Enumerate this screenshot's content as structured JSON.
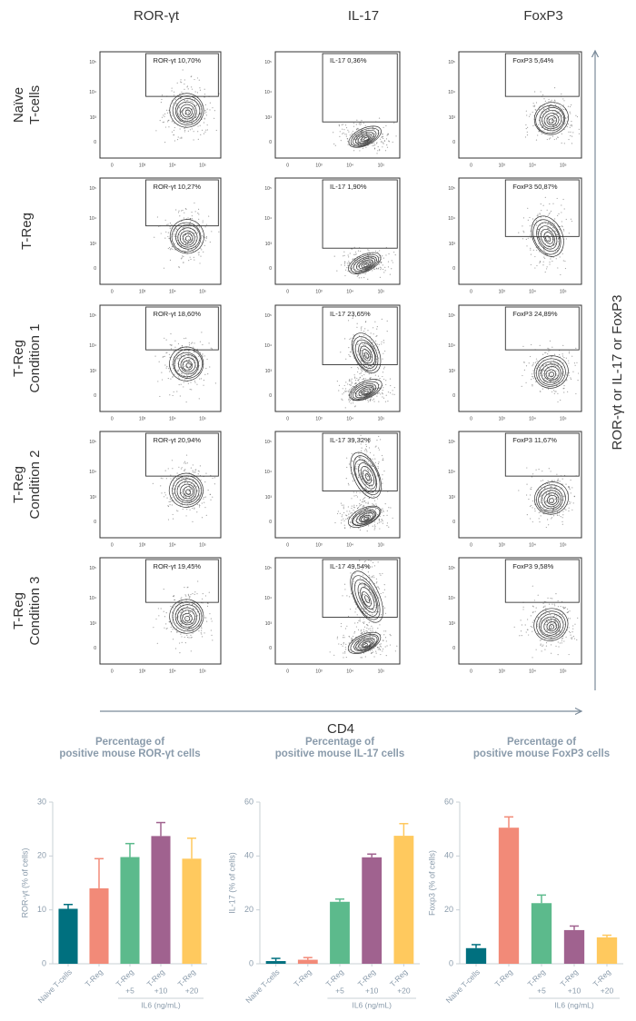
{
  "flow": {
    "column_headers": [
      "ROR-γt",
      "IL-17",
      "FoxP3"
    ],
    "row_labels": [
      [
        "Naïve",
        "T-cells"
      ],
      [
        "T-Reg"
      ],
      [
        "T-Reg",
        "Condition 1"
      ],
      [
        "T-Reg",
        "Condition 2"
      ],
      [
        "T-Reg",
        "Condition 3"
      ]
    ],
    "gates": [
      [
        "ROR-γt 10,70%",
        "IL-17 0,36%",
        "FoxP3 5,64%"
      ],
      [
        "ROR-γt 10,27%",
        "IL-17 1,90%",
        "FoxP3 50,87%"
      ],
      [
        "ROR-γt 18,60%",
        "IL-17 23,65%",
        "FoxP3 24,89%"
      ],
      [
        "ROR-γt 20,94%",
        "IL-17 39,32%",
        "FoxP3 11,67%"
      ],
      [
        "ROR-γt 19,45%",
        "IL-17 49,54%",
        "FoxP3 9,58%"
      ]
    ],
    "tick_labels": [
      "0",
      "10³",
      "10⁴",
      "10⁵"
    ],
    "x_axis_label": "CD4",
    "y_axis_label": "ROR-γt or IL-17 or FoxP3"
  },
  "chart_data": [
    {
      "type": "bar",
      "title": [
        "Percentage of",
        "positive mouse ROR-γt cells"
      ],
      "ylabel": "ROR-γt (% of cells)",
      "categories": [
        "Naive T-cells",
        "T-Reg",
        "T-Reg",
        "T-Reg",
        "T-Reg"
      ],
      "sublabels": [
        "+5",
        "+10",
        "+20"
      ],
      "group_label": "IL6 (ng/mL)",
      "values": [
        10.2,
        14,
        19.8,
        23.7,
        19.5
      ],
      "errors": [
        0.8,
        5.5,
        2.5,
        2.5,
        3.8
      ],
      "colors": [
        "#00707f",
        "#f28a78",
        "#5cba8c",
        "#a0628f",
        "#ffc95e"
      ],
      "ylim": [
        0,
        30
      ],
      "yticks": [
        0,
        10,
        20,
        30
      ]
    },
    {
      "type": "bar",
      "title": [
        "Percentage of",
        "positive mouse IL-17 cells"
      ],
      "ylabel": "IL-17 (% of cells)",
      "categories": [
        "Naive T-cells",
        "T-Reg",
        "T-Reg",
        "T-Reg",
        "T-Reg"
      ],
      "sublabels": [
        "+5",
        "+10",
        "+20"
      ],
      "group_label": "IL6 (ng/mL)",
      "values": [
        1,
        1.5,
        23,
        39.5,
        47.5
      ],
      "errors": [
        1,
        0.8,
        1,
        1.2,
        4.5
      ],
      "colors": [
        "#00707f",
        "#f28a78",
        "#5cba8c",
        "#a0628f",
        "#ffc95e"
      ],
      "ylim": [
        0,
        60
      ],
      "yticks": [
        0,
        20,
        40,
        60
      ]
    },
    {
      "type": "bar",
      "title": [
        "Percentage of",
        "positive mouse FoxP3 cells"
      ],
      "ylabel": "Foxp3 (% of cells)",
      "categories": [
        "Naive T-cells",
        "T-Reg",
        "T-Reg",
        "T-Reg",
        "T-Reg"
      ],
      "sublabels": [
        "+5",
        "+10",
        "+20"
      ],
      "group_label": "IL6 (ng/mL)",
      "values": [
        5.8,
        50.5,
        22.5,
        12.5,
        9.8
      ],
      "errors": [
        1.3,
        4,
        3,
        1.5,
        0.8
      ],
      "colors": [
        "#00707f",
        "#f28a78",
        "#5cba8c",
        "#a0628f",
        "#ffc95e"
      ],
      "ylim": [
        0,
        60
      ],
      "yticks": [
        0,
        20,
        40,
        60
      ]
    }
  ]
}
